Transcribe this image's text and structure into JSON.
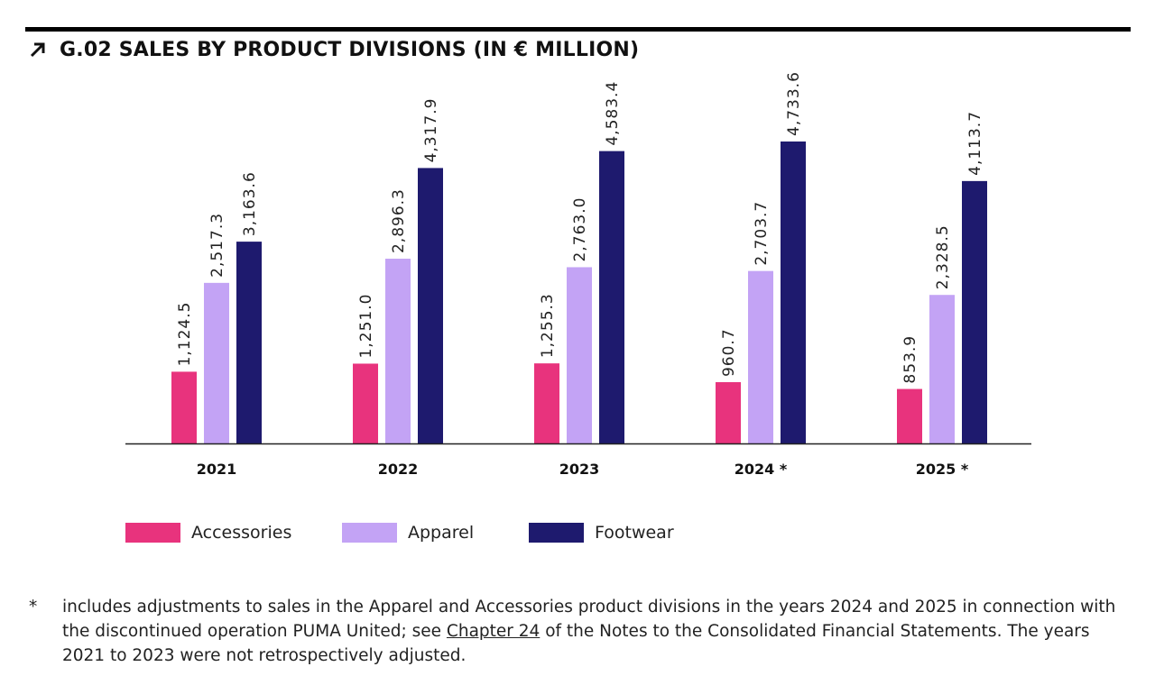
{
  "title": "G.02 SALES BY PRODUCT DIVISIONS (IN € MILLION)",
  "title_icon": "arrow-up-right-icon",
  "chart_data": {
    "type": "bar",
    "title": "G.02 SALES BY PRODUCT DIVISIONS (IN € MILLION)",
    "categories": [
      "2021",
      "2022",
      "2023",
      "2024 *",
      "2025 *"
    ],
    "series": [
      {
        "name": "Accessories",
        "color": "#E8337D",
        "values": [
          1124.5,
          1251.0,
          1255.3,
          960.7,
          853.9
        ],
        "labels": [
          "1,124.5",
          "1,251.0",
          "1,255.3",
          "960.7",
          "853.9"
        ]
      },
      {
        "name": "Apparel",
        "color": "#C3A3F5",
        "values": [
          2517.3,
          2896.3,
          2763.0,
          2703.7,
          2328.5
        ],
        "labels": [
          "2,517.3",
          "2,896.3",
          "2,763.0",
          "2,703.7",
          "2,328.5"
        ]
      },
      {
        "name": "Footwear",
        "color": "#1E1A6E",
        "values": [
          3163.6,
          4317.9,
          4583.4,
          4733.6,
          4113.7
        ],
        "labels": [
          "3,163.6",
          "4,317.9",
          "4,583.4",
          "4,733.6",
          "4,113.7"
        ]
      }
    ],
    "ylim": [
      0,
      4733.6
    ],
    "xlabel": "",
    "ylabel": "",
    "grid": false,
    "legend": "bottom-left"
  },
  "footnote": {
    "marker": "*",
    "text_before_link": "includes adjustments to sales in the Apparel and Accessories product divisions in the years 2024 and 2025 in connection with the discontinued operation PUMA United; see ",
    "link_text": "Chapter 24",
    "text_after_link": " of the Notes to the Consolidated Financial Statements. The years 2021 to 2023 were not retrospectively adjusted."
  }
}
